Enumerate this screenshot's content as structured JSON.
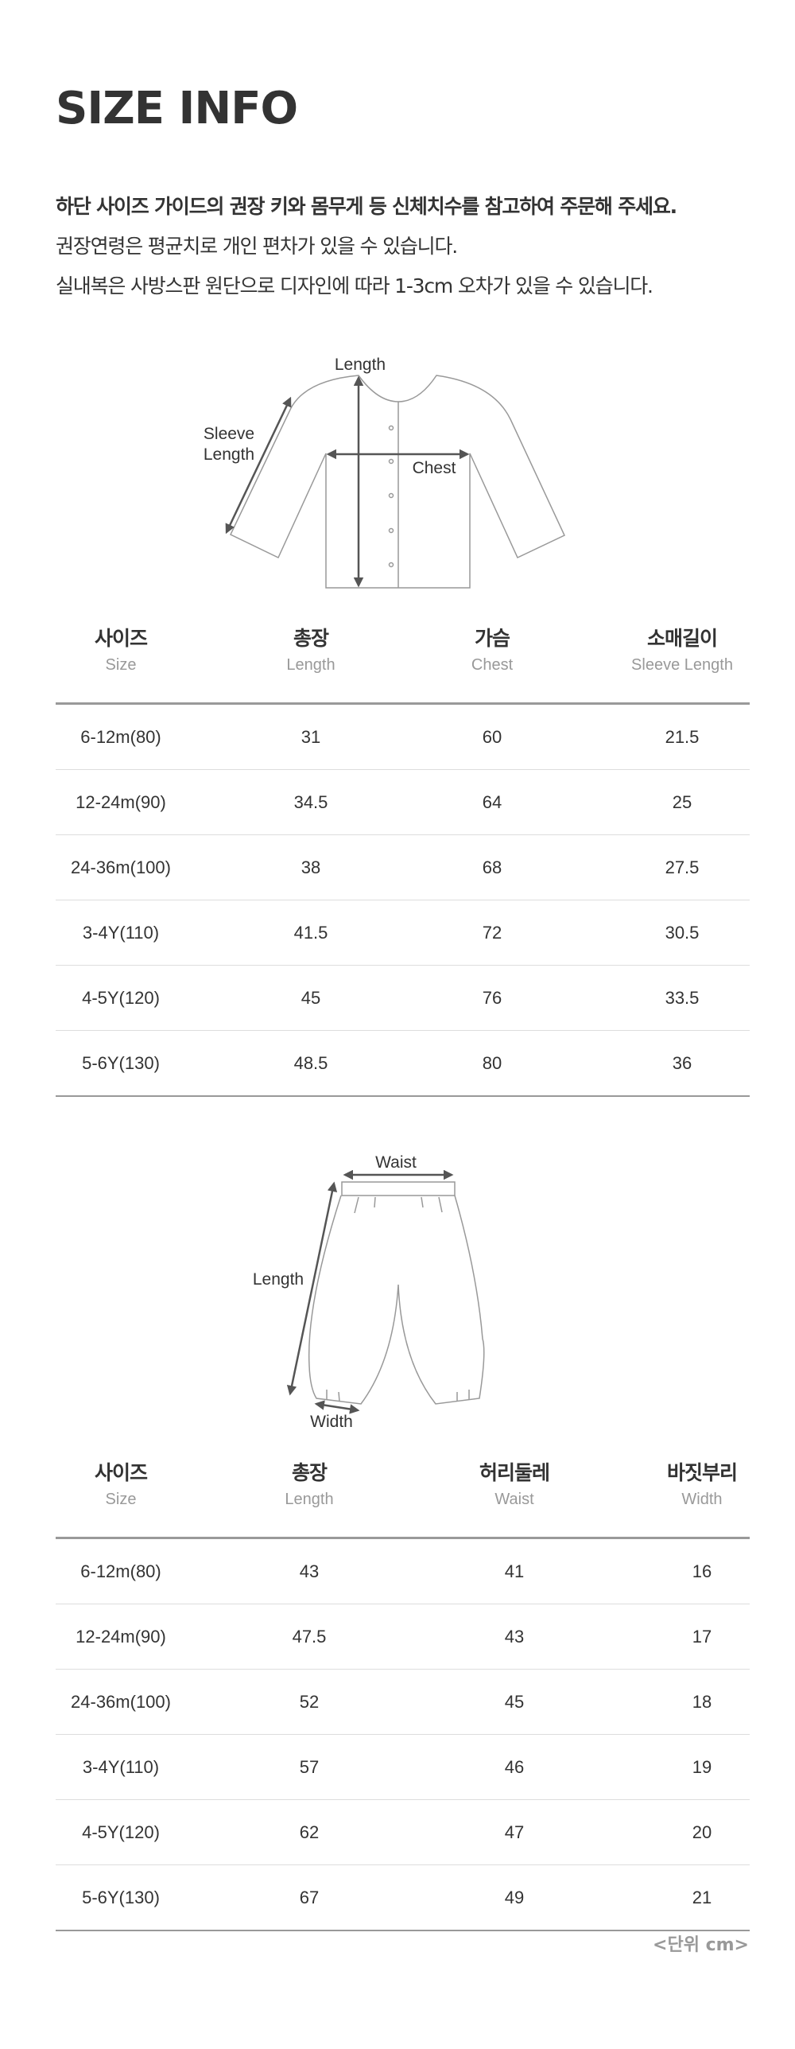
{
  "title": "SIZE INFO",
  "intro": [
    "하단 사이즈 가이드의 권장 키와 몸무게 등 신체치수를 참고하여 주문해 주세요.",
    "권장연령은 평균치로 개인 편차가 있을 수 있습니다.",
    "실내복은 사방스판 원단으로 디자인에 따라 1-3cm 오차가 있을 수 있습니다."
  ],
  "top_diagram": {
    "length": "Length",
    "sleeve1": "Sleeve",
    "sleeve2": "Length",
    "chest": "Chest"
  },
  "top_table": {
    "headers": [
      {
        "ko": "사이즈",
        "en": "Size"
      },
      {
        "ko": "총장",
        "en": "Length"
      },
      {
        "ko": "가슴",
        "en": "Chest"
      },
      {
        "ko": "소매길이",
        "en": "Sleeve Length"
      }
    ],
    "rows": [
      [
        "6-12m(80)",
        "31",
        "60",
        "21.5"
      ],
      [
        "12-24m(90)",
        "34.5",
        "64",
        "25"
      ],
      [
        "24-36m(100)",
        "38",
        "68",
        "27.5"
      ],
      [
        "3-4Y(110)",
        "41.5",
        "72",
        "30.5"
      ],
      [
        "4-5Y(120)",
        "45",
        "76",
        "33.5"
      ],
      [
        "5-6Y(130)",
        "48.5",
        "80",
        "36"
      ]
    ]
  },
  "bottom_diagram": {
    "waist": "Waist",
    "length": "Length",
    "width": "Width"
  },
  "bottom_table": {
    "headers": [
      {
        "ko": "사이즈",
        "en": "Size"
      },
      {
        "ko": "총장",
        "en": "Length"
      },
      {
        "ko": "허리둘레",
        "en": "Waist"
      },
      {
        "ko": "바짓부리",
        "en": "Width"
      }
    ],
    "rows": [
      [
        "6-12m(80)",
        "43",
        "41",
        "16"
      ],
      [
        "12-24m(90)",
        "47.5",
        "43",
        "17"
      ],
      [
        "24-36m(100)",
        "52",
        "45",
        "18"
      ],
      [
        "3-4Y(110)",
        "57",
        "46",
        "19"
      ],
      [
        "4-5Y(120)",
        "62",
        "47",
        "20"
      ],
      [
        "5-6Y(130)",
        "67",
        "49",
        "21"
      ]
    ]
  },
  "unit": "<단위 cm>"
}
